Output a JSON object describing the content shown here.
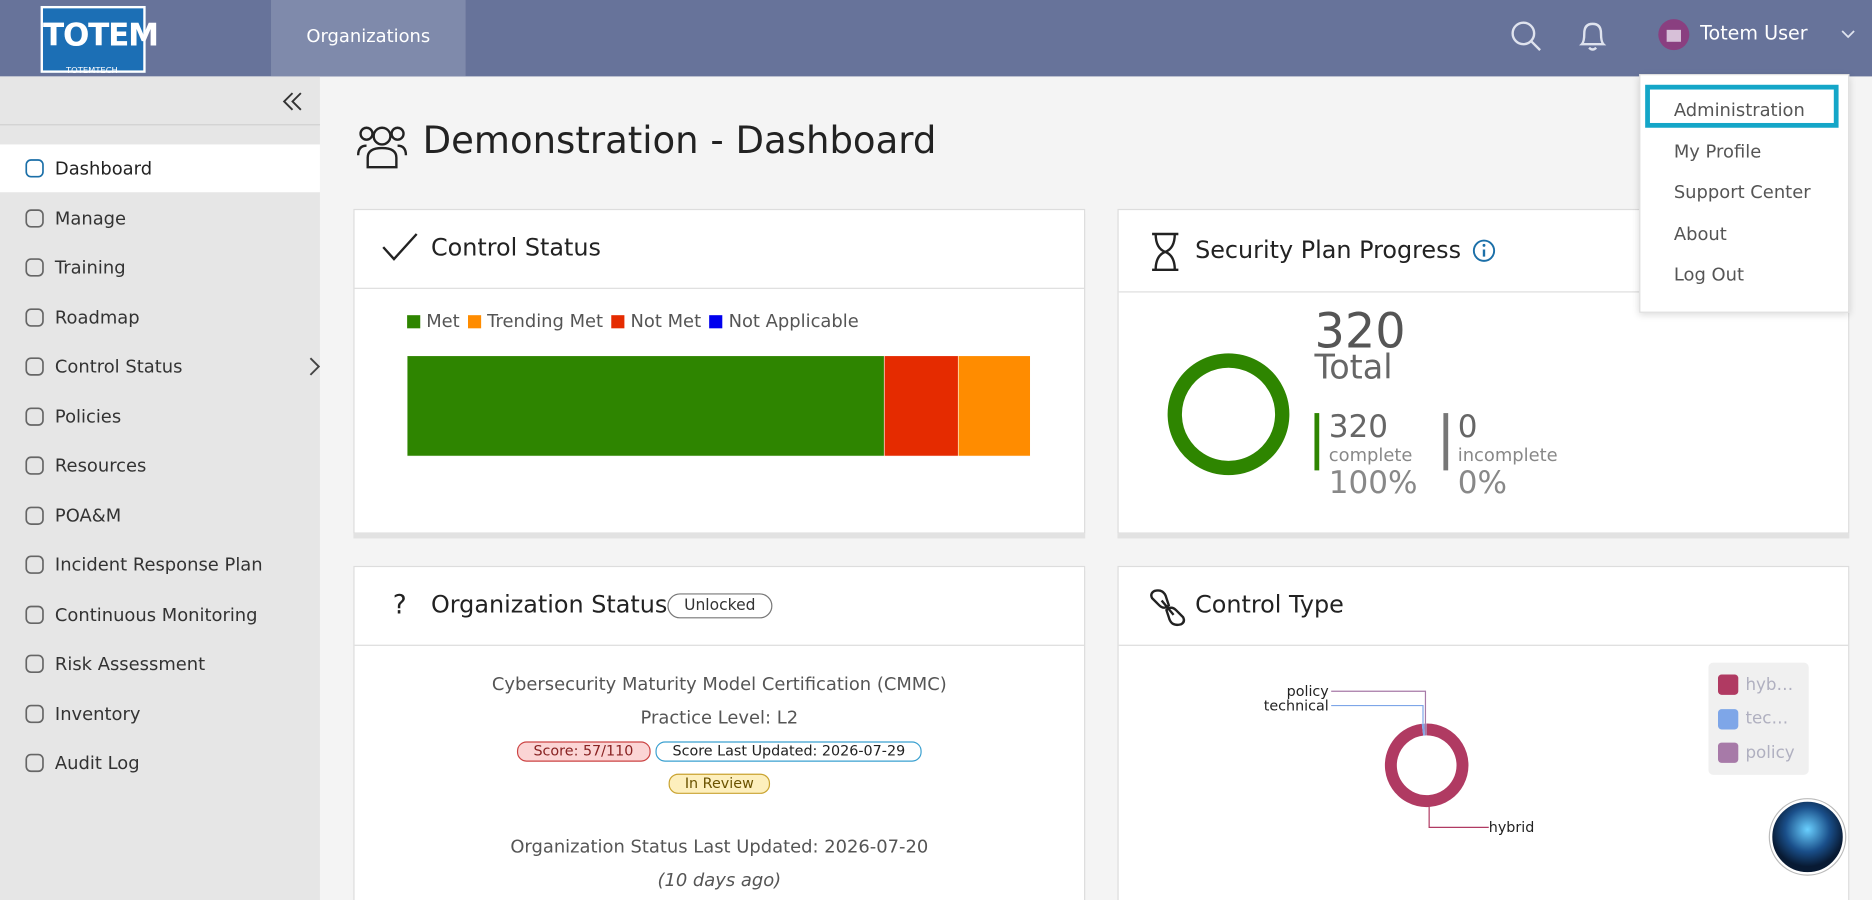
{
  "header": {
    "logo": "TOTEM",
    "logo_sub": "TOTEMTECH",
    "tab": "Organizations",
    "user": "Totem User"
  },
  "user_menu": [
    "Administration",
    "My Profile",
    "Support Center",
    "About",
    "Log Out"
  ],
  "sidebar": [
    "Dashboard",
    "Manage",
    "Training",
    "Roadmap",
    "Control Status",
    "Policies",
    "Resources",
    "POA&M",
    "Incident Response Plan",
    "Continuous Monitoring",
    "Risk Assessment",
    "Inventory",
    "Audit Log"
  ],
  "page_title": "Demonstration - Dashboard",
  "control_status": {
    "title": "Control Status",
    "chart_data": {
      "type": "stacked-bar",
      "series": [
        {
          "name": "Met",
          "color": "#2e8500",
          "values": [
            245
          ]
        },
        {
          "name": "Trending Met",
          "color": "#ff8c00",
          "values": [
            37
          ]
        },
        {
          "name": "Not Met",
          "color": "#e52b00",
          "values": [
            38
          ]
        },
        {
          "name": "Not Applicable",
          "color": "#0000ee",
          "values": [
            0
          ]
        }
      ]
    }
  },
  "security_plan": {
    "title": "Security Plan Progress",
    "total": 320,
    "total_label": "Total",
    "complete": 320,
    "complete_label": "complete",
    "complete_percent": "100%",
    "incomplete": 0,
    "incomplete_label": "incomplete",
    "incomplete_percent": "0%"
  },
  "organization_status": {
    "title": "Organization Status",
    "lock": "Unlocked",
    "framework": "Cybersecurity Maturity Model Certification (CMMC)",
    "level": "Practice Level: L2",
    "score": "Score: 57/110",
    "score_updated": "Score Last Updated: 2026-07-29",
    "review": "In Review",
    "status_updated": "Organization Status Last Updated: 2026-07-20",
    "ago": "(10 days ago)"
  },
  "control_type": {
    "title": "Control Type",
    "chart_data": {
      "type": "pie",
      "categories": [
        "hybrid",
        "technical",
        "policy"
      ],
      "values": [
        314,
        3,
        3
      ],
      "colors": [
        "#b03a62",
        "#7ea6e8",
        "#a77aa8"
      ]
    }
  }
}
